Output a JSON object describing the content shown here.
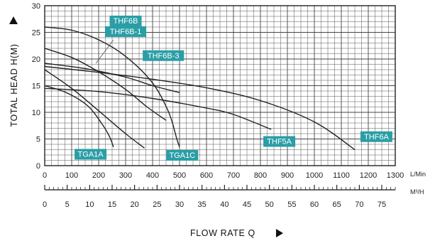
{
  "chart_data": {
    "type": "line",
    "ylabel": "TOTAL HEAD H(M)",
    "xlabel": "FLOW RATE Q",
    "xunit_primary": "L/Min",
    "xunit_secondary": "M³/H",
    "xlim": [
      0,
      1300
    ],
    "ylim": [
      0,
      30
    ],
    "x_ticks": [
      0,
      100,
      200,
      300,
      400,
      500,
      600,
      700,
      800,
      900,
      1000,
      1100,
      1200,
      1300
    ],
    "y_ticks": [
      0,
      5,
      10,
      15,
      20,
      25,
      30
    ],
    "x2_ticks": [
      0,
      5,
      10,
      15,
      20,
      25,
      30,
      35,
      40,
      45,
      50,
      55,
      60,
      65,
      70,
      75
    ],
    "x2_per_x": 0.06,
    "grid": true,
    "series": [
      {
        "name": "THF6B",
        "points": [
          [
            0,
            26.0
          ],
          [
            100,
            25.4
          ],
          [
            200,
            23.6
          ],
          [
            300,
            20.5
          ],
          [
            400,
            15.5
          ],
          [
            460,
            10.0
          ],
          [
            490,
            5.0
          ],
          [
            500,
            3.5
          ]
        ]
      },
      {
        "name": "THF6B-1",
        "points": [
          [
            0,
            22.0
          ],
          [
            100,
            20.3
          ],
          [
            200,
            17.6
          ],
          [
            300,
            14.3
          ],
          [
            380,
            11.0
          ],
          [
            450,
            8.5
          ]
        ]
      },
      {
        "name": "THF6B-3",
        "points": [
          [
            0,
            19.2
          ],
          [
            150,
            18.2
          ],
          [
            300,
            16.6
          ],
          [
            400,
            15.0
          ],
          [
            500,
            13.7
          ]
        ]
      },
      {
        "name": "THF6A",
        "points": [
          [
            0,
            18.6
          ],
          [
            200,
            17.5
          ],
          [
            400,
            16.2
          ],
          [
            600,
            14.6
          ],
          [
            800,
            12.2
          ],
          [
            1000,
            8.2
          ],
          [
            1150,
            3.0
          ]
        ]
      },
      {
        "name": "THF5A",
        "points": [
          [
            0,
            14.5
          ],
          [
            200,
            13.9
          ],
          [
            400,
            12.6
          ],
          [
            600,
            10.8
          ],
          [
            700,
            9.6
          ],
          [
            840,
            6.8
          ]
        ]
      },
      {
        "name": "TGA1A",
        "points": [
          [
            0,
            15.0
          ],
          [
            80,
            13.7
          ],
          [
            160,
            11.2
          ],
          [
            210,
            8.0
          ],
          [
            240,
            5.5
          ],
          [
            255,
            3.5
          ]
        ]
      },
      {
        "name": "TGA1C",
        "points": [
          [
            0,
            18.0
          ],
          [
            100,
            14.5
          ],
          [
            200,
            10.3
          ],
          [
            300,
            6.0
          ],
          [
            370,
            3.3
          ]
        ]
      }
    ],
    "labels": [
      {
        "text": "THF6B",
        "for": "THF6B",
        "x": 300,
        "y": 27.2
      },
      {
        "text": "THF6B-1",
        "for": "THF6B-1",
        "x": 300,
        "y": 25.2
      },
      {
        "text": "THF6B-3",
        "for": "THF6B-3",
        "x": 440,
        "y": 20.7
      },
      {
        "text": "TGA1A",
        "for": "TGA1A",
        "x": 170,
        "y": 2.2
      },
      {
        "text": "TGA1C",
        "for": "TGA1C",
        "x": 510,
        "y": 2.0
      },
      {
        "text": "THF5A",
        "for": "THF5A",
        "x": 870,
        "y": 4.6
      },
      {
        "text": "THF6A",
        "for": "THF6A",
        "x": 1230,
        "y": 5.5
      }
    ],
    "label_color": "#2a9ea6",
    "line_color": "#222222"
  }
}
